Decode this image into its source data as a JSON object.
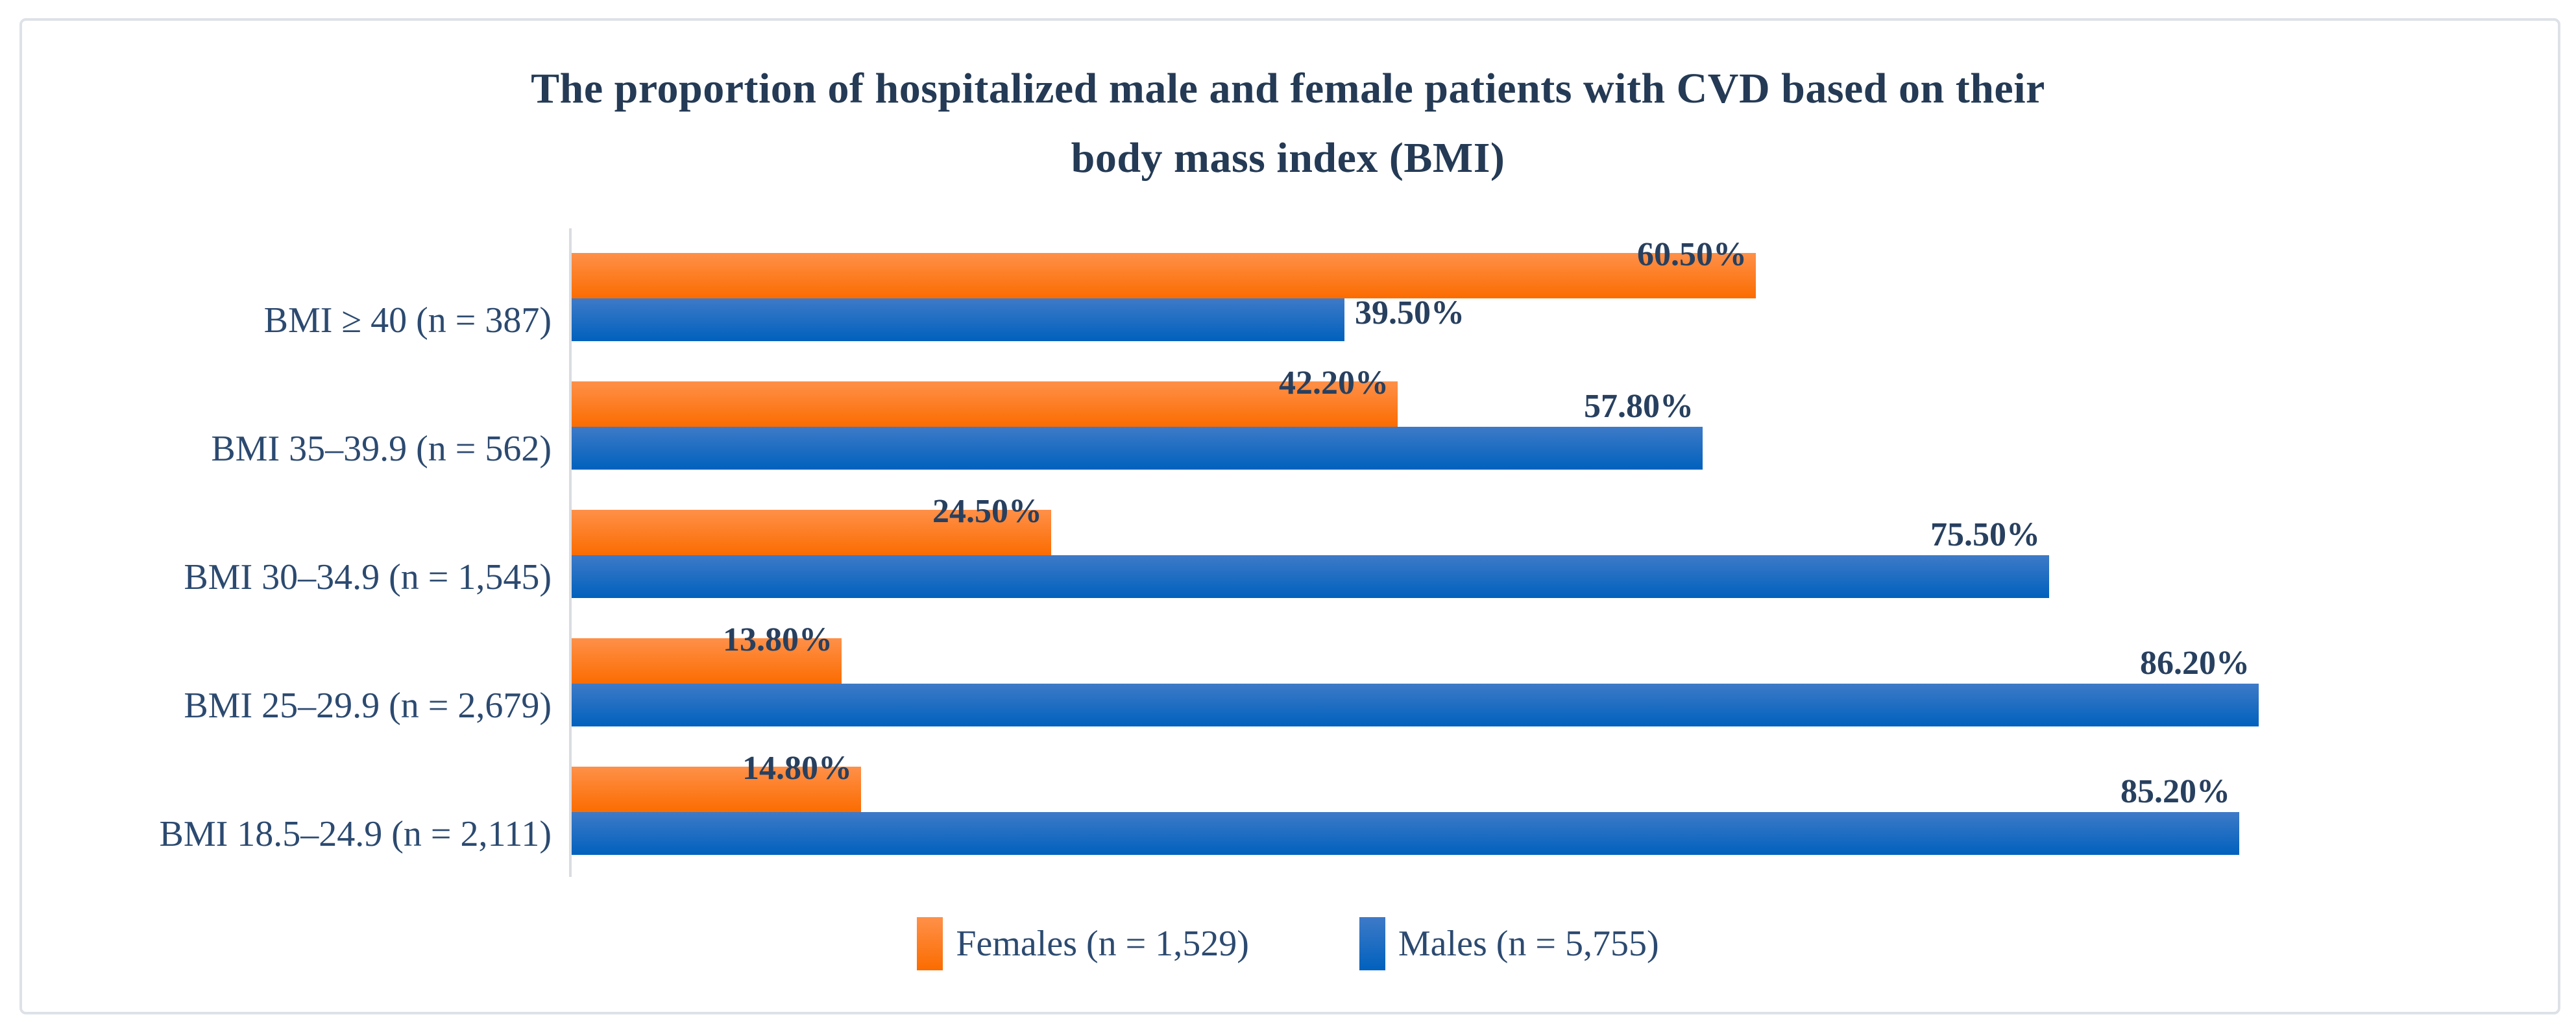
{
  "title_lines": [
    "The proportion of hospitalized male and female patients with CVD based on their",
    "body mass index (BMI)"
  ],
  "chart_data": {
    "type": "bar",
    "orientation": "horizontal",
    "title": "The proportion of hospitalized male and female patients with CVD based on their body mass index (BMI)",
    "categories": [
      "BMI ≥ 40 (n = 387)",
      "BMI 35–39.9 (n = 562)",
      "BMI 30–34.9 (n = 1,545)",
      "BMI 25–29.9 (n = 2,679)",
      "BMI 18.5–24.9 (n = 2,111)"
    ],
    "series": [
      {
        "name": "Females (n = 1,529)",
        "color": "#f4711d",
        "values": [
          60.5,
          42.2,
          24.5,
          13.8,
          14.8
        ],
        "data_labels": [
          "60.50%",
          "42.20%",
          "24.50%",
          "13.80%",
          "14.80%"
        ]
      },
      {
        "name": "Males (n = 5,755)",
        "color": "#1b6bc0",
        "values": [
          39.5,
          57.8,
          75.5,
          86.2,
          85.2
        ],
        "data_labels": [
          "39.50%",
          "57.80%",
          "75.50%",
          "86.20%",
          "85.20%"
        ]
      }
    ],
    "xlim": [
      0,
      100
    ],
    "grid": false,
    "x_axis_labels_visible": false,
    "legend_position": "bottom"
  },
  "colors": {
    "female_gradient_top": "#ff9049",
    "female_gradient_bottom": "#fb6c00",
    "male_gradient_top": "#3e7ac8",
    "male_gradient_bottom": "#0061bd",
    "text_navy": "#2c4a70",
    "title_navy": "#243a55",
    "card_border": "#dde2e8",
    "axis_line": "#d9dce1"
  }
}
